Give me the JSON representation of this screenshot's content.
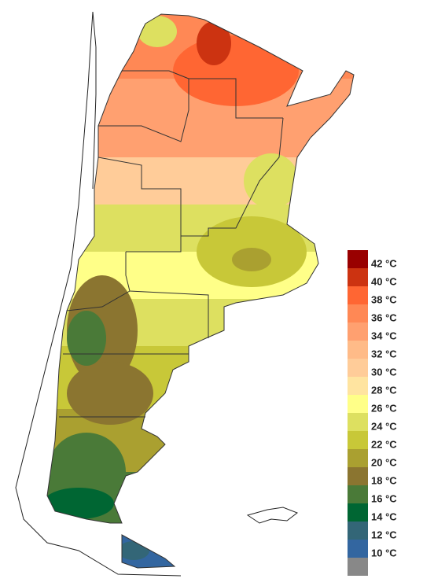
{
  "legend": {
    "items": [
      {
        "label": "42 °C",
        "color": "#990000"
      },
      {
        "label": "40 °C",
        "color": "#cc3311"
      },
      {
        "label": "38 °C",
        "color": "#ff6633"
      },
      {
        "label": "36 °C",
        "color": "#ff8855"
      },
      {
        "label": "34 °C",
        "color": "#ffa070"
      },
      {
        "label": "32 °C",
        "color": "#ffbb88"
      },
      {
        "label": "30 °C",
        "color": "#ffcc99"
      },
      {
        "label": "28 °C",
        "color": "#ffe4a0"
      },
      {
        "label": "26 °C",
        "color": "#ffff88"
      },
      {
        "label": "24 °C",
        "color": "#dde060"
      },
      {
        "label": "22 °C",
        "color": "#c8c838"
      },
      {
        "label": "20 °C",
        "color": "#aaa030"
      },
      {
        "label": "18 °C",
        "color": "#8b7530"
      },
      {
        "label": "16 °C",
        "color": "#4a7a38"
      },
      {
        "label": "14 °C",
        "color": "#006633"
      },
      {
        "label": "12 °C",
        "color": "#336677"
      },
      {
        "label": "10 °C",
        "color": "#3366a0"
      },
      {
        "label": null,
        "color": "#888888"
      }
    ]
  }
}
